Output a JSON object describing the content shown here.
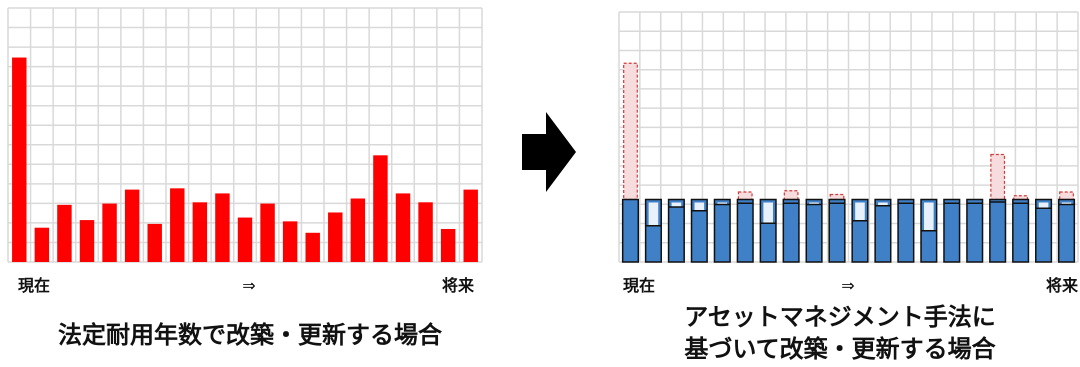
{
  "colors": {
    "red_bar": "#ff0000",
    "blue_bar": "#3f80c7",
    "blue_inner": "#5b95d1",
    "bar_outline": "#111111",
    "grid": "#d9d9d9",
    "arrow": "#000000",
    "spike_fill": "#f6dcdc",
    "spike_outline": "#d33a3a"
  },
  "arrow_icon": "right-arrow-icon",
  "chart_data": [
    {
      "type": "bar",
      "title": "",
      "caption": "法定耐用年数で改築・更新する場合",
      "start_label": "現在",
      "mid_label": "⇒",
      "end_label": "将来",
      "ylim": [
        0,
        20
      ],
      "grid": true,
      "values": [
        16.1,
        2.7,
        4.5,
        3.3,
        4.6,
        5.7,
        3.0,
        5.8,
        4.7,
        5.4,
        3.5,
        4.6,
        3.2,
        2.3,
        3.9,
        5.0,
        8.4,
        5.4,
        4.7,
        2.6,
        5.7
      ]
    },
    {
      "type": "bar",
      "title": "",
      "caption_lines": [
        "アセットマネジメント手法に",
        "基づいて改築・更新する場合"
      ],
      "start_label": "現在",
      "mid_label": "⇒",
      "end_label": "将来",
      "ylim": [
        0,
        20
      ],
      "grid": true,
      "values": [
        5.0,
        5.0,
        5.0,
        5.0,
        5.0,
        5.0,
        5.0,
        5.0,
        5.0,
        5.0,
        5.0,
        5.0,
        5.0,
        5.0,
        5.0,
        5.0,
        5.0,
        5.0,
        5.0,
        5.0
      ],
      "inner_values": [
        5.0,
        2.9,
        4.4,
        4.1,
        4.6,
        4.7,
        3.1,
        4.7,
        4.6,
        4.7,
        3.3,
        4.5,
        4.7,
        2.5,
        4.7,
        4.7,
        4.8,
        4.7,
        4.3,
        4.6
      ],
      "excess_values": [
        10.9,
        0,
        0,
        0,
        0,
        0.6,
        0,
        0.7,
        0,
        0.4,
        0,
        0,
        0,
        0,
        0,
        0,
        3.6,
        0.3,
        0,
        0.6
      ]
    }
  ]
}
